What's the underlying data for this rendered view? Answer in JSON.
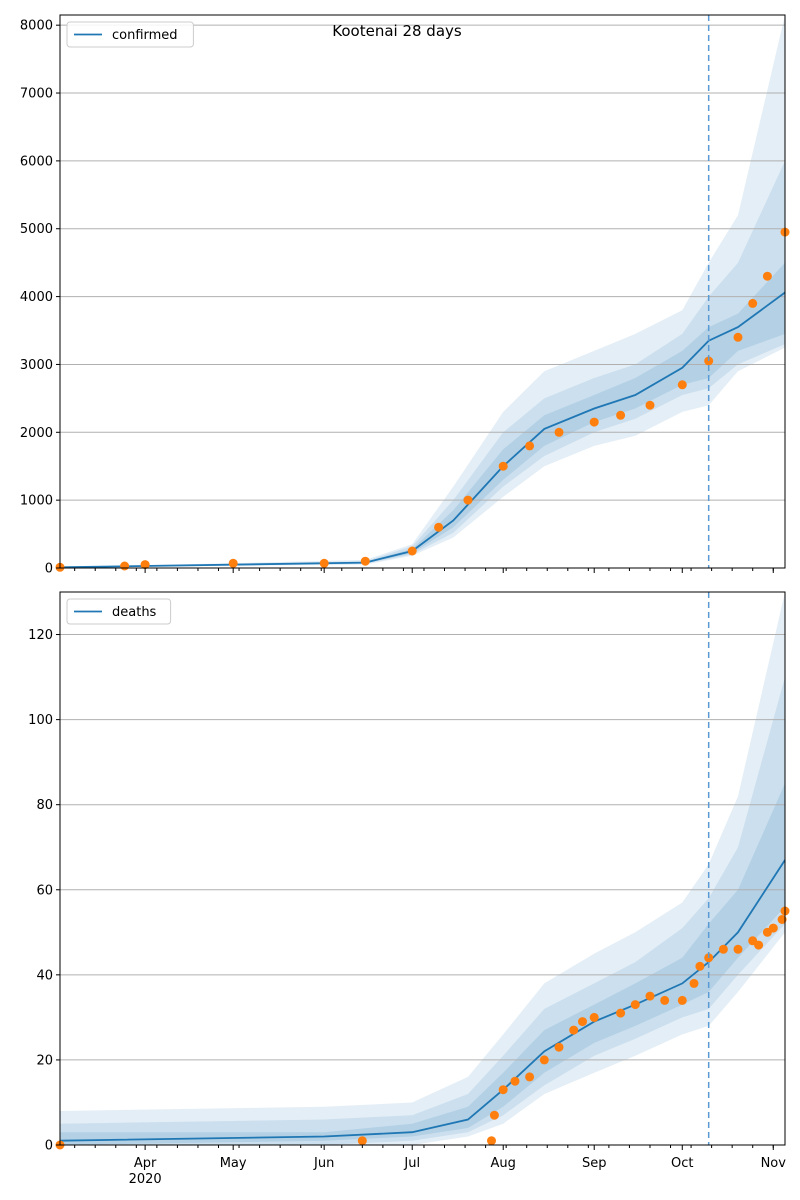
{
  "figure": {
    "title": "Kootenai 28 days",
    "colors": {
      "line": "#1f77b4",
      "band": "#1f77b4",
      "observed": "#ff7f0e",
      "grid": "#b0b0b0"
    }
  },
  "chart_data": [
    {
      "type": "line",
      "panel": "top",
      "title": "Kootenai 28 days",
      "xlabel": "",
      "ylabel": "",
      "xlim": [
        "2020-03-03",
        "2020-11-05"
      ],
      "ylim": [
        0,
        8150
      ],
      "yticks": [
        0,
        1000,
        2000,
        3000,
        4000,
        5000,
        6000,
        7000,
        8000
      ],
      "xticks": [
        {
          "date": "2020-04-01",
          "label": "Apr",
          "sublabel": "2020"
        },
        {
          "date": "2020-05-01",
          "label": "May",
          "sublabel": ""
        },
        {
          "date": "2020-06-01",
          "label": "Jun",
          "sublabel": ""
        },
        {
          "date": "2020-07-01",
          "label": "Jul",
          "sublabel": ""
        },
        {
          "date": "2020-08-01",
          "label": "Aug",
          "sublabel": ""
        },
        {
          "date": "2020-09-01",
          "label": "Sep",
          "sublabel": ""
        },
        {
          "date": "2020-10-01",
          "label": "Oct",
          "sublabel": ""
        },
        {
          "date": "2020-11-01",
          "label": "Nov",
          "sublabel": ""
        }
      ],
      "xtick_labels_shown": false,
      "grid": "y",
      "legend": "top-left",
      "forecast_start": "2020-10-10",
      "series": [
        {
          "name": "confirmed",
          "kind": "model",
          "x": [
            "2020-03-03",
            "2020-06-15",
            "2020-07-01",
            "2020-07-15",
            "2020-08-01",
            "2020-08-15",
            "2020-09-01",
            "2020-09-15",
            "2020-10-01",
            "2020-10-10",
            "2020-10-20",
            "2020-11-05"
          ],
          "median": [
            10,
            80,
            250,
            700,
            1500,
            2050,
            2350,
            2550,
            2950,
            3350,
            3550,
            4060
          ],
          "band50": [
            [
              10,
              10
            ],
            [
              70,
              90
            ],
            [
              220,
              280
            ],
            [
              600,
              850
            ],
            [
              1300,
              1750
            ],
            [
              1800,
              2250
            ],
            [
              2150,
              2550
            ],
            [
              2350,
              2800
            ],
            [
              2700,
              3200
            ],
            [
              2800,
              3550
            ],
            [
              3200,
              3750
            ],
            [
              3450,
              4500
            ]
          ],
          "band80": [
            [
              10,
              10
            ],
            [
              60,
              100
            ],
            [
              200,
              320
            ],
            [
              520,
              1000
            ],
            [
              1200,
              2000
            ],
            [
              1650,
              2500
            ],
            [
              2000,
              2800
            ],
            [
              2200,
              3000
            ],
            [
              2550,
              3450
            ],
            [
              2650,
              4000
            ],
            [
              3000,
              4500
            ],
            [
              3300,
              6000
            ]
          ],
          "band95": [
            [
              10,
              10
            ],
            [
              50,
              120
            ],
            [
              180,
              350
            ],
            [
              450,
              1200
            ],
            [
              1050,
              2300
            ],
            [
              1500,
              2900
            ],
            [
              1800,
              3200
            ],
            [
              1950,
              3450
            ],
            [
              2300,
              3800
            ],
            [
              2400,
              4500
            ],
            [
              2900,
              5200
            ],
            [
              3250,
              8150
            ]
          ]
        },
        {
          "name": "",
          "kind": "observed",
          "x": [
            "2020-03-03",
            "2020-03-25",
            "2020-04-01",
            "2020-05-01",
            "2020-06-01",
            "2020-06-15",
            "2020-07-01",
            "2020-07-10",
            "2020-07-20",
            "2020-08-01",
            "2020-08-10",
            "2020-08-20",
            "2020-09-01",
            "2020-09-10",
            "2020-09-20",
            "2020-10-01",
            "2020-10-10",
            "2020-10-20",
            "2020-10-25",
            "2020-10-30",
            "2020-11-05"
          ],
          "y": [
            10,
            30,
            50,
            70,
            70,
            100,
            250,
            600,
            1000,
            1500,
            1800,
            2000,
            2150,
            2250,
            2400,
            2700,
            3050,
            3400,
            3900,
            4300,
            4950
          ]
        }
      ]
    },
    {
      "type": "line",
      "panel": "bottom",
      "title": "",
      "xlabel": "",
      "ylabel": "",
      "xlim": [
        "2020-03-03",
        "2020-11-05"
      ],
      "ylim": [
        0,
        130
      ],
      "yticks": [
        0,
        20,
        40,
        60,
        80,
        100,
        120
      ],
      "xticks": [
        {
          "date": "2020-04-01",
          "label": "Apr",
          "sublabel": "2020"
        },
        {
          "date": "2020-05-01",
          "label": "May",
          "sublabel": ""
        },
        {
          "date": "2020-06-01",
          "label": "Jun",
          "sublabel": ""
        },
        {
          "date": "2020-07-01",
          "label": "Jul",
          "sublabel": ""
        },
        {
          "date": "2020-08-01",
          "label": "Aug",
          "sublabel": ""
        },
        {
          "date": "2020-09-01",
          "label": "Sep",
          "sublabel": ""
        },
        {
          "date": "2020-10-01",
          "label": "Oct",
          "sublabel": ""
        },
        {
          "date": "2020-11-01",
          "label": "Nov",
          "sublabel": ""
        }
      ],
      "xtick_labels_shown": true,
      "grid": "y",
      "legend": "top-left",
      "forecast_start": "2020-10-10",
      "series": [
        {
          "name": "deaths",
          "kind": "model",
          "x": [
            "2020-03-03",
            "2020-06-01",
            "2020-07-01",
            "2020-07-20",
            "2020-08-01",
            "2020-08-15",
            "2020-09-01",
            "2020-09-15",
            "2020-10-01",
            "2020-10-10",
            "2020-10-20",
            "2020-11-05"
          ],
          "median": [
            1,
            2,
            3,
            6,
            13,
            22,
            29,
            33,
            38,
            43,
            50,
            67
          ],
          "band50": [
            [
              0,
              3
            ],
            [
              1,
              3
            ],
            [
              2,
              5
            ],
            [
              4,
              9
            ],
            [
              9,
              17
            ],
            [
              17,
              27
            ],
            [
              24,
              33
            ],
            [
              28,
              38
            ],
            [
              33,
              44
            ],
            [
              36,
              52
            ],
            [
              44,
              60
            ],
            [
              56,
              85
            ]
          ],
          "band80": [
            [
              0,
              5
            ],
            [
              0,
              6
            ],
            [
              1,
              7
            ],
            [
              3,
              12
            ],
            [
              7,
              21
            ],
            [
              14,
              32
            ],
            [
              21,
              38
            ],
            [
              25,
              43
            ],
            [
              30,
              51
            ],
            [
              32,
              58
            ],
            [
              40,
              70
            ],
            [
              52,
              110
            ]
          ],
          "band95": [
            [
              0,
              8
            ],
            [
              0,
              9
            ],
            [
              0,
              10
            ],
            [
              2,
              16
            ],
            [
              5,
              26
            ],
            [
              12,
              38
            ],
            [
              17,
              45
            ],
            [
              21,
              50
            ],
            [
              26,
              57
            ],
            [
              28,
              66
            ],
            [
              36,
              82
            ],
            [
              50,
              130
            ]
          ]
        },
        {
          "name": "",
          "kind": "observed",
          "x": [
            "2020-03-03",
            "2020-06-14",
            "2020-07-28",
            "2020-07-29",
            "2020-08-01",
            "2020-08-05",
            "2020-08-10",
            "2020-08-15",
            "2020-08-20",
            "2020-08-25",
            "2020-08-28",
            "2020-09-01",
            "2020-09-10",
            "2020-09-15",
            "2020-09-20",
            "2020-09-25",
            "2020-10-01",
            "2020-10-05",
            "2020-10-07",
            "2020-10-10",
            "2020-10-15",
            "2020-10-20",
            "2020-10-25",
            "2020-10-27",
            "2020-10-30",
            "2020-11-01",
            "2020-11-04",
            "2020-11-05"
          ],
          "y": [
            0,
            1,
            1,
            7,
            13,
            15,
            16,
            20,
            23,
            27,
            29,
            30,
            31,
            33,
            35,
            34,
            34,
            38,
            42,
            44,
            46,
            46,
            48,
            47,
            50,
            51,
            53,
            55
          ]
        }
      ]
    }
  ]
}
